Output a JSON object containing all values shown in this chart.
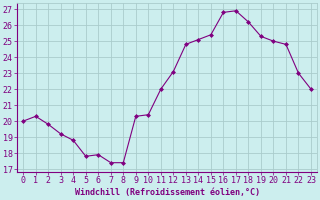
{
  "x": [
    0,
    1,
    2,
    3,
    4,
    5,
    6,
    7,
    8,
    9,
    10,
    11,
    12,
    13,
    14,
    15,
    16,
    17,
    18,
    19,
    20,
    21,
    22,
    23
  ],
  "y": [
    20,
    20.3,
    19.8,
    19.2,
    18.8,
    17.8,
    17.9,
    17.4,
    17.4,
    20.3,
    20.4,
    22.0,
    23.1,
    24.8,
    25.1,
    25.4,
    26.8,
    26.9,
    26.2,
    25.3,
    25.0,
    24.8,
    23.0,
    22.0
  ],
  "line_color": "#800080",
  "marker": "D",
  "marker_size": 2.0,
  "bg_color": "#cceeee",
  "grid_color": "#aacccc",
  "xlabel": "Windchill (Refroidissement éolien,°C)",
  "ylabel_ticks": [
    17,
    18,
    19,
    20,
    21,
    22,
    23,
    24,
    25,
    26,
    27
  ],
  "ylim": [
    16.8,
    27.4
  ],
  "xlim": [
    -0.5,
    23.5
  ],
  "tick_color": "#800080",
  "xlabel_fontsize": 6.0,
  "tick_fontsize": 6.0,
  "lw": 0.8
}
